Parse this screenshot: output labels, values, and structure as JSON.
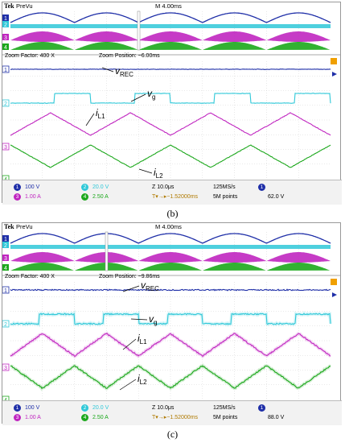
{
  "colors": {
    "ch1": "#1f2fa8",
    "ch2": "#2fc8d8",
    "ch3": "#c026c0",
    "ch4": "#1ca81c",
    "grid": "#c8c8c8"
  },
  "panels": [
    {
      "caption": "(b)",
      "header": {
        "brand": "Tek",
        "mode": "PreVu",
        "timebase": "M 4.00ms"
      },
      "zoom": {
        "factor": "Zoom Factor: 400 X",
        "position": "Zoom Position: −6.00ms"
      },
      "channel_markers": [
        "1",
        "2",
        "3",
        "4"
      ],
      "labels": {
        "vrec": {
          "sym": "v",
          "sub": "REC"
        },
        "vg": {
          "sym": "v",
          "sub": "g"
        },
        "il1": {
          "sym": "i",
          "sub": "L1"
        },
        "il2": {
          "sym": "i",
          "sub": "L2"
        }
      },
      "status": {
        "ch1_scale": "100 V",
        "ch2_scale": "20.0 V",
        "ch3_scale": "1.00 A",
        "ch4_scale": "2.50 A",
        "horiz": "Z 10.0μs",
        "rate": "125MS/s",
        "offset": "T▾→▸−1.52000ms",
        "points": "5M points",
        "trig_level": "62.0 V"
      }
    },
    {
      "caption": "(c)",
      "header": {
        "brand": "Tek",
        "mode": "PreVu",
        "timebase": "M 4.00ms"
      },
      "zoom": {
        "factor": "Zoom Factor: 400 X",
        "position": "Zoom Position: −9.86ms"
      },
      "channel_markers": [
        "1",
        "2",
        "3",
        "4"
      ],
      "labels": {
        "vrec": {
          "sym": "v",
          "sub": "REC"
        },
        "vg": {
          "sym": "v",
          "sub": "g"
        },
        "il1": {
          "sym": "i",
          "sub": "L1"
        },
        "il2": {
          "sym": "i",
          "sub": "L2"
        }
      },
      "status": {
        "ch1_scale": "100 V",
        "ch2_scale": "20.0 V",
        "ch3_scale": "1.00 A",
        "ch4_scale": "2.50 A",
        "horiz": "Z 10.0μs",
        "rate": "125MS/s",
        "offset": "T▾→▸−1.52000ms",
        "points": "5M points",
        "trig_level": "88.0 V"
      }
    }
  ],
  "chart_data": [
    {
      "type": "line",
      "title": "",
      "x_unit": "μs",
      "x_range": [
        0,
        100
      ],
      "series": [
        {
          "name": "vREC",
          "shape": "flat",
          "level": 0.0,
          "noise": 0.03
        },
        {
          "name": "vg",
          "shape": "square",
          "period_us": 25,
          "duty": 0.45,
          "low": 0.0,
          "high": 1.0
        },
        {
          "name": "iL1",
          "shape": "triangle",
          "period_us": 25,
          "low": 0.0,
          "high": 1.0,
          "phase": 0.0
        },
        {
          "name": "iL2",
          "shape": "triangle",
          "period_us": 25,
          "low": 0.0,
          "high": 1.0,
          "phase": 0.5
        }
      ]
    },
    {
      "type": "line",
      "title": "",
      "x_unit": "μs",
      "x_range": [
        0,
        100
      ],
      "series": [
        {
          "name": "vREC",
          "shape": "flat",
          "level": 0.0,
          "noise": 0.03
        },
        {
          "name": "vg",
          "shape": "square",
          "period_us": 20,
          "duty": 0.55,
          "low": 0.0,
          "high": 1.0
        },
        {
          "name": "iL1",
          "shape": "triangle",
          "period_us": 20,
          "low": 0.0,
          "high": 1.0,
          "phase": 0.0
        },
        {
          "name": "iL2",
          "shape": "triangle",
          "period_us": 20,
          "low": 0.0,
          "high": 1.0,
          "phase": 0.5
        }
      ]
    }
  ]
}
